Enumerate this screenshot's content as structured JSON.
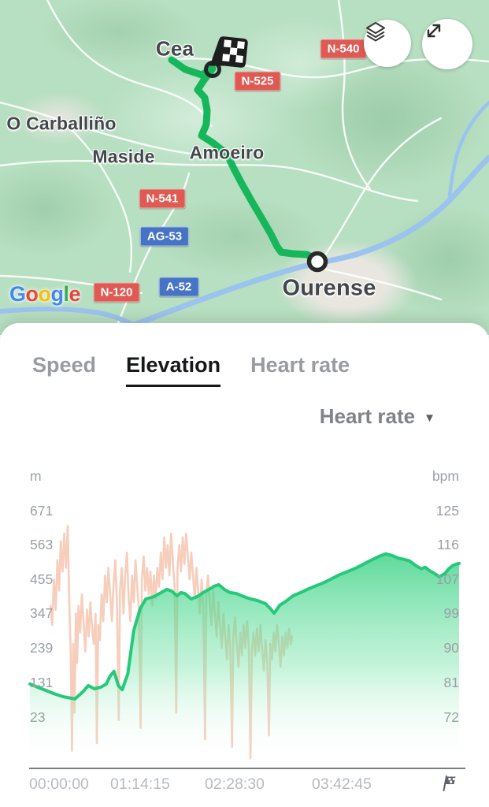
{
  "map": {
    "towns": [
      {
        "name": "Cea"
      },
      {
        "name": "O Carballiño"
      },
      {
        "name": "Maside"
      },
      {
        "name": "Amoeiro"
      },
      {
        "name": "Ourense"
      }
    ],
    "badges": [
      {
        "label": "N-540",
        "type": "red"
      },
      {
        "label": "N-525",
        "type": "red"
      },
      {
        "label": "N-541",
        "type": "red"
      },
      {
        "label": "AG-53",
        "type": "blue"
      },
      {
        "label": "A-52",
        "type": "blue"
      },
      {
        "label": "N-120",
        "type": "red"
      }
    ],
    "attribution_letters": [
      {
        "char": "G",
        "color": "#4285F4"
      },
      {
        "char": "o",
        "color": "#EA4335"
      },
      {
        "char": "o",
        "color": "#FBBC05"
      },
      {
        "char": "g",
        "color": "#4285F4"
      },
      {
        "char": "l",
        "color": "#34A853"
      },
      {
        "char": "e",
        "color": "#EA4335"
      }
    ],
    "route_color": "#15b75a",
    "river_color": "#9cc3ee"
  },
  "panel": {
    "tabs": [
      {
        "label": "Speed",
        "active": false
      },
      {
        "label": "Elevation",
        "active": true
      },
      {
        "label": "Heart rate",
        "active": false
      }
    ],
    "overlay_selector": {
      "label": "Heart rate",
      "icon": "▼"
    }
  },
  "chart_data": {
    "type": "area",
    "left_axis": {
      "unit": "m",
      "ticks": [
        671,
        563,
        455,
        347,
        239,
        131,
        23
      ],
      "label": "Elevation"
    },
    "right_axis": {
      "unit": "bpm",
      "ticks": [
        125,
        116,
        107,
        99,
        90,
        81,
        72
      ],
      "label": "Heart rate"
    },
    "x_axis": {
      "ticks": [
        "00:00:00",
        "01:14:15",
        "02:28:30",
        "03:42:45"
      ],
      "end_marker": "finish-flag-icon"
    },
    "legend": "off",
    "grid": "off",
    "series": [
      {
        "name": "Elevation",
        "unit": "m",
        "style": "area",
        "line_color": "#25c97a",
        "points": [
          [
            0.0,
            125
          ],
          [
            0.018,
            115
          ],
          [
            0.037,
            105
          ],
          [
            0.055,
            95
          ],
          [
            0.077,
            85
          ],
          [
            0.105,
            78
          ],
          [
            0.123,
            100
          ],
          [
            0.136,
            120
          ],
          [
            0.15,
            110
          ],
          [
            0.165,
            115
          ],
          [
            0.178,
            125
          ],
          [
            0.187,
            150
          ],
          [
            0.196,
            165
          ],
          [
            0.206,
            120
          ],
          [
            0.215,
            107
          ],
          [
            0.228,
            157
          ],
          [
            0.242,
            294
          ],
          [
            0.257,
            363
          ],
          [
            0.27,
            393
          ],
          [
            0.288,
            400
          ],
          [
            0.306,
            413
          ],
          [
            0.319,
            423
          ],
          [
            0.33,
            418
          ],
          [
            0.343,
            403
          ],
          [
            0.352,
            413
          ],
          [
            0.361,
            410
          ],
          [
            0.376,
            393
          ],
          [
            0.389,
            400
          ],
          [
            0.404,
            413
          ],
          [
            0.417,
            423
          ],
          [
            0.429,
            433
          ],
          [
            0.44,
            438
          ],
          [
            0.453,
            423
          ],
          [
            0.466,
            413
          ],
          [
            0.481,
            410
          ],
          [
            0.494,
            403
          ],
          [
            0.503,
            398
          ],
          [
            0.514,
            393
          ],
          [
            0.53,
            388
          ],
          [
            0.549,
            378
          ],
          [
            0.56,
            363
          ],
          [
            0.569,
            348
          ],
          [
            0.582,
            373
          ],
          [
            0.596,
            385
          ],
          [
            0.613,
            403
          ],
          [
            0.631,
            413
          ],
          [
            0.646,
            423
          ],
          [
            0.664,
            433
          ],
          [
            0.683,
            443
          ],
          [
            0.701,
            455
          ],
          [
            0.719,
            468
          ],
          [
            0.738,
            478
          ],
          [
            0.756,
            488
          ],
          [
            0.771,
            498
          ],
          [
            0.785,
            508
          ],
          [
            0.8,
            518
          ],
          [
            0.815,
            528
          ],
          [
            0.829,
            535
          ],
          [
            0.844,
            530
          ],
          [
            0.857,
            522
          ],
          [
            0.87,
            518
          ],
          [
            0.884,
            513
          ],
          [
            0.899,
            498
          ],
          [
            0.912,
            488
          ],
          [
            0.921,
            493
          ],
          [
            0.93,
            483
          ],
          [
            0.943,
            473
          ],
          [
            0.954,
            463
          ],
          [
            0.967,
            473
          ],
          [
            0.976,
            488
          ],
          [
            0.985,
            498
          ],
          [
            0.994,
            503
          ],
          [
            1.0,
            505
          ]
        ]
      },
      {
        "name": "Heart rate",
        "unit": "bpm",
        "style": "line",
        "line_color": "#f7cdbb",
        "points": [
          [
            0.048,
            100
          ],
          [
            0.052,
            95
          ],
          [
            0.056,
            107
          ],
          [
            0.06,
            99
          ],
          [
            0.064,
            112
          ],
          [
            0.068,
            104
          ],
          [
            0.072,
            117
          ],
          [
            0.076,
            109
          ],
          [
            0.08,
            119
          ],
          [
            0.084,
            110
          ],
          [
            0.088,
            121
          ],
          [
            0.092,
            100
          ],
          [
            0.095,
            88
          ],
          [
            0.098,
            62
          ],
          [
            0.101,
            90
          ],
          [
            0.104,
            72
          ],
          [
            0.107,
            98
          ],
          [
            0.11,
            85
          ],
          [
            0.113,
            100
          ],
          [
            0.117,
            93
          ],
          [
            0.121,
            103
          ],
          [
            0.125,
            96
          ],
          [
            0.129,
            88
          ],
          [
            0.133,
            99
          ],
          [
            0.137,
            92
          ],
          [
            0.141,
            101
          ],
          [
            0.145,
            94
          ],
          [
            0.149,
            90
          ],
          [
            0.153,
            98
          ],
          [
            0.156,
            64
          ],
          [
            0.159,
            95
          ],
          [
            0.163,
            91
          ],
          [
            0.167,
            103
          ],
          [
            0.171,
            96
          ],
          [
            0.175,
            108
          ],
          [
            0.179,
            101
          ],
          [
            0.183,
            110
          ],
          [
            0.187,
            103
          ],
          [
            0.191,
            96
          ],
          [
            0.195,
            106
          ],
          [
            0.199,
            112
          ],
          [
            0.203,
            100
          ],
          [
            0.207,
            70
          ],
          [
            0.21,
            104
          ],
          [
            0.214,
            110
          ],
          [
            0.218,
            98
          ],
          [
            0.222,
            108
          ],
          [
            0.226,
            114
          ],
          [
            0.23,
            102
          ],
          [
            0.234,
            96
          ],
          [
            0.238,
            108
          ],
          [
            0.242,
            101
          ],
          [
            0.246,
            112
          ],
          [
            0.25,
            105
          ],
          [
            0.254,
            99
          ],
          [
            0.258,
            68
          ],
          [
            0.261,
            107
          ],
          [
            0.265,
            113
          ],
          [
            0.269,
            104
          ],
          [
            0.273,
            110
          ],
          [
            0.277,
            103
          ],
          [
            0.281,
            109
          ],
          [
            0.285,
            100
          ],
          [
            0.289,
            108
          ],
          [
            0.293,
            102
          ],
          [
            0.297,
            110
          ],
          [
            0.301,
            105
          ],
          [
            0.305,
            114
          ],
          [
            0.309,
            107
          ],
          [
            0.313,
            118
          ],
          [
            0.317,
            110
          ],
          [
            0.321,
            116
          ],
          [
            0.325,
            108
          ],
          [
            0.329,
            119
          ],
          [
            0.333,
            112
          ],
          [
            0.337,
            105
          ],
          [
            0.341,
            72
          ],
          [
            0.344,
            110
          ],
          [
            0.348,
            116
          ],
          [
            0.352,
            109
          ],
          [
            0.356,
            118
          ],
          [
            0.36,
            111
          ],
          [
            0.364,
            119
          ],
          [
            0.368,
            113
          ],
          [
            0.372,
            107
          ],
          [
            0.376,
            114
          ],
          [
            0.38,
            108
          ],
          [
            0.384,
            102
          ],
          [
            0.388,
            110
          ],
          [
            0.392,
            104
          ],
          [
            0.396,
            98
          ],
          [
            0.4,
            107
          ],
          [
            0.404,
            100
          ],
          [
            0.408,
            65
          ],
          [
            0.411,
            103
          ],
          [
            0.415,
            108
          ],
          [
            0.419,
            101
          ],
          [
            0.423,
            95
          ],
          [
            0.427,
            104
          ],
          [
            0.431,
            98
          ],
          [
            0.435,
            92
          ],
          [
            0.439,
            101
          ],
          [
            0.443,
            95
          ],
          [
            0.447,
            89
          ],
          [
            0.451,
            98
          ],
          [
            0.455,
            92
          ],
          [
            0.459,
            86
          ],
          [
            0.463,
            95
          ],
          [
            0.467,
            89
          ],
          [
            0.471,
            63
          ],
          [
            0.474,
            92
          ],
          [
            0.478,
            97
          ],
          [
            0.482,
            90
          ],
          [
            0.486,
            84
          ],
          [
            0.49,
            93
          ],
          [
            0.494,
            87
          ],
          [
            0.498,
            95
          ],
          [
            0.502,
            89
          ],
          [
            0.506,
            96
          ],
          [
            0.51,
            90
          ],
          [
            0.514,
            60
          ],
          [
            0.517,
            88
          ],
          [
            0.521,
            93
          ],
          [
            0.525,
            87
          ],
          [
            0.529,
            94
          ],
          [
            0.533,
            88
          ],
          [
            0.537,
            95
          ],
          [
            0.541,
            89
          ],
          [
            0.545,
            83
          ],
          [
            0.549,
            91
          ],
          [
            0.553,
            85
          ],
          [
            0.557,
            66
          ],
          [
            0.56,
            90
          ],
          [
            0.564,
            86
          ],
          [
            0.568,
            93
          ],
          [
            0.572,
            88
          ],
          [
            0.576,
            95
          ],
          [
            0.58,
            90
          ],
          [
            0.584,
            84
          ],
          [
            0.588,
            92
          ],
          [
            0.592,
            87
          ],
          [
            0.596,
            93
          ],
          [
            0.6,
            89
          ],
          [
            0.604,
            94
          ],
          [
            0.608,
            90
          ],
          [
            0.611,
            92
          ]
        ]
      }
    ]
  }
}
